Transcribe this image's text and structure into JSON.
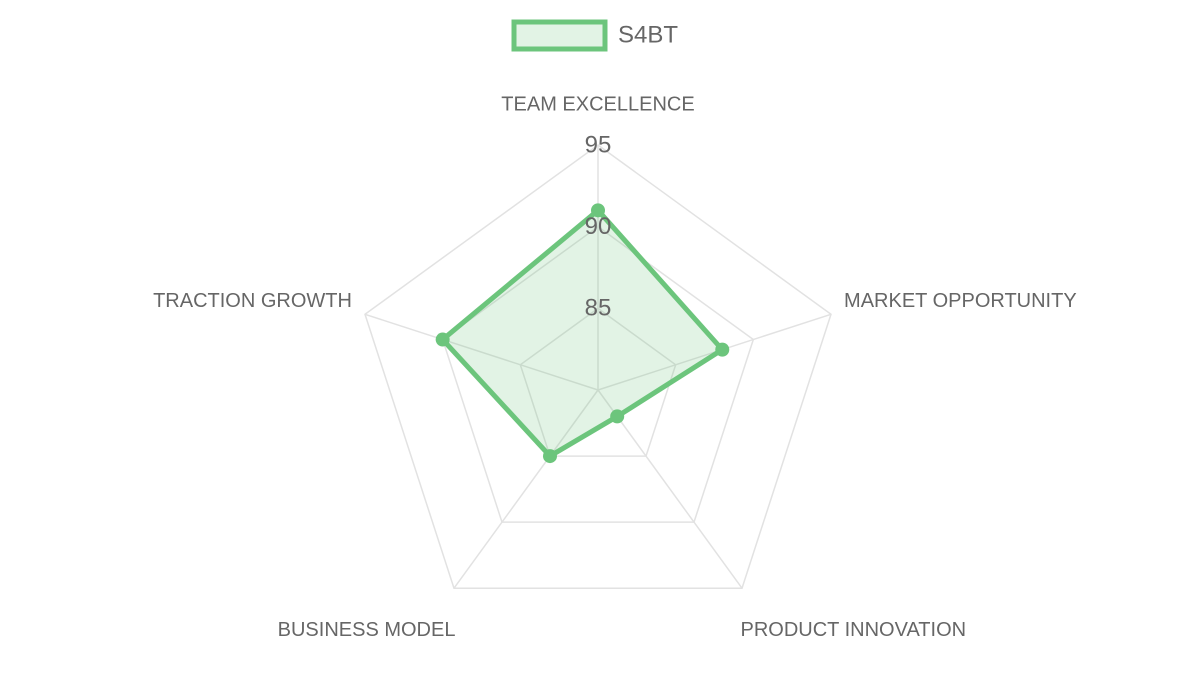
{
  "chart_data": {
    "type": "radar",
    "categories": [
      "TEAM EXCELLENCE",
      "MARKET OPPORTUNITY",
      "PRODUCT INNOVATION",
      "BUSINESS MODEL",
      "TRACTION GROWTH"
    ],
    "series": [
      {
        "name": "S4BT",
        "color": "#6cc57c",
        "values": [
          91,
          88,
          82,
          85,
          90
        ]
      }
    ],
    "rlim": [
      80,
      95
    ],
    "rticks": [
      85,
      90,
      95
    ],
    "grid": true,
    "legend": "top"
  }
}
